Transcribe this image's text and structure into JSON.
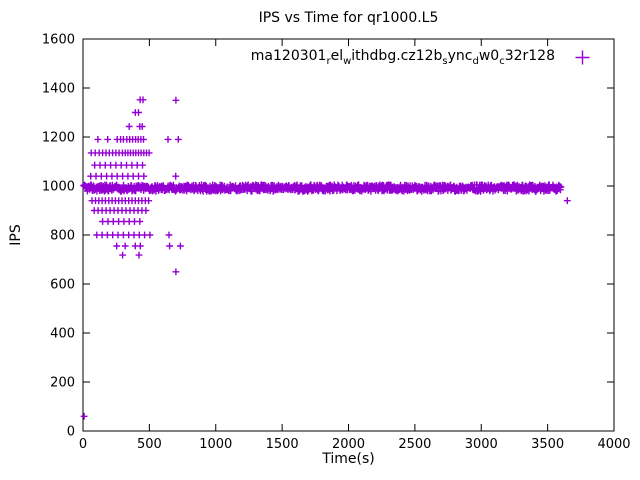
{
  "page": {
    "background": "#ffffff"
  },
  "chart_data": {
    "type": "scatter",
    "title": "IPS vs Time for qr1000.L5",
    "xlabel": "Time(s)",
    "ylabel": "IPS",
    "xlim": [
      0,
      4000
    ],
    "ylim": [
      0,
      1600
    ],
    "xticks": [
      0,
      500,
      1000,
      1500,
      2000,
      2500,
      3000,
      3500,
      4000
    ],
    "yticks": [
      0,
      200,
      400,
      600,
      800,
      1000,
      1200,
      1400,
      1600
    ],
    "grid": false,
    "marker": "plus",
    "color": "#9400d3",
    "legend": {
      "position": "top-right-inside",
      "label_plain": "ma120301_rel_withdbg.cz12b_sync_dw0_c32r128",
      "label_segments": [
        {
          "t": "ma120301"
        },
        {
          "t": "r",
          "sub": true
        },
        {
          "t": "el"
        },
        {
          "t": "w",
          "sub": true
        },
        {
          "t": "ithdbg.cz12b"
        },
        {
          "t": "s",
          "sub": true
        },
        {
          "t": "ync"
        },
        {
          "t": "d",
          "sub": true
        },
        {
          "t": "w0"
        },
        {
          "t": "c",
          "sub": true
        },
        {
          "t": "32r128"
        }
      ]
    },
    "series": [
      {
        "name": "ma120301_rel_withdbg.cz12b_sync_dw0_c32r128",
        "band": {
          "x_start": 5,
          "x_end": 3600,
          "ips_min": 978,
          "ips_max": 1005,
          "count": 900,
          "note": "dense steady-state band around IPS ~990 spanning full run"
        },
        "points": [
          [
            430,
            1352
          ],
          [
            452,
            1352
          ],
          [
            700,
            1350
          ],
          [
            394,
            1300
          ],
          [
            418,
            1300
          ],
          [
            348,
            1243
          ],
          [
            428,
            1243
          ],
          [
            446,
            1243
          ],
          [
            112,
            1190
          ],
          [
            186,
            1190
          ],
          [
            258,
            1190
          ],
          [
            283,
            1190
          ],
          [
            304,
            1190
          ],
          [
            330,
            1190
          ],
          [
            352,
            1190
          ],
          [
            374,
            1190
          ],
          [
            396,
            1190
          ],
          [
            416,
            1190
          ],
          [
            436,
            1190
          ],
          [
            456,
            1190
          ],
          [
            640,
            1190
          ],
          [
            718,
            1190
          ],
          [
            62,
            1135
          ],
          [
            92,
            1135
          ],
          [
            122,
            1135
          ],
          [
            148,
            1135
          ],
          [
            173,
            1135
          ],
          [
            198,
            1135
          ],
          [
            223,
            1135
          ],
          [
            248,
            1135
          ],
          [
            272,
            1135
          ],
          [
            297,
            1135
          ],
          [
            318,
            1135
          ],
          [
            338,
            1135
          ],
          [
            358,
            1135
          ],
          [
            378,
            1135
          ],
          [
            398,
            1135
          ],
          [
            418,
            1135
          ],
          [
            438,
            1135
          ],
          [
            458,
            1135
          ],
          [
            478,
            1135
          ],
          [
            498,
            1135
          ],
          [
            88,
            1085
          ],
          [
            128,
            1085
          ],
          [
            168,
            1085
          ],
          [
            208,
            1085
          ],
          [
            248,
            1085
          ],
          [
            288,
            1085
          ],
          [
            328,
            1085
          ],
          [
            368,
            1085
          ],
          [
            408,
            1085
          ],
          [
            448,
            1085
          ],
          [
            58,
            1040
          ],
          [
            98,
            1040
          ],
          [
            138,
            1040
          ],
          [
            178,
            1040
          ],
          [
            218,
            1040
          ],
          [
            258,
            1040
          ],
          [
            298,
            1040
          ],
          [
            338,
            1040
          ],
          [
            378,
            1040
          ],
          [
            418,
            1040
          ],
          [
            458,
            1040
          ],
          [
            698,
            1040
          ],
          [
            68,
            940
          ],
          [
            94,
            940
          ],
          [
            119,
            940
          ],
          [
            144,
            940
          ],
          [
            169,
            940
          ],
          [
            194,
            940
          ],
          [
            219,
            940
          ],
          [
            244,
            940
          ],
          [
            269,
            940
          ],
          [
            294,
            940
          ],
          [
            319,
            940
          ],
          [
            344,
            940
          ],
          [
            369,
            940
          ],
          [
            394,
            940
          ],
          [
            419,
            940
          ],
          [
            444,
            940
          ],
          [
            469,
            940
          ],
          [
            494,
            940
          ],
          [
            84,
            900
          ],
          [
            114,
            900
          ],
          [
            144,
            900
          ],
          [
            174,
            900
          ],
          [
            204,
            900
          ],
          [
            234,
            900
          ],
          [
            264,
            900
          ],
          [
            294,
            900
          ],
          [
            324,
            900
          ],
          [
            354,
            900
          ],
          [
            384,
            900
          ],
          [
            414,
            900
          ],
          [
            444,
            900
          ],
          [
            474,
            900
          ],
          [
            148,
            855
          ],
          [
            188,
            855
          ],
          [
            228,
            855
          ],
          [
            268,
            855
          ],
          [
            308,
            855
          ],
          [
            348,
            855
          ],
          [
            388,
            855
          ],
          [
            428,
            855
          ],
          [
            104,
            800
          ],
          [
            144,
            800
          ],
          [
            184,
            800
          ],
          [
            224,
            800
          ],
          [
            264,
            800
          ],
          [
            304,
            800
          ],
          [
            344,
            800
          ],
          [
            384,
            800
          ],
          [
            424,
            800
          ],
          [
            464,
            800
          ],
          [
            504,
            800
          ],
          [
            648,
            800
          ],
          [
            254,
            755
          ],
          [
            318,
            755
          ],
          [
            394,
            755
          ],
          [
            432,
            755
          ],
          [
            652,
            755
          ],
          [
            734,
            755
          ],
          [
            298,
            718
          ],
          [
            422,
            718
          ],
          [
            700,
            650
          ],
          [
            8,
            60
          ],
          [
            3648,
            940
          ]
        ]
      }
    ]
  }
}
